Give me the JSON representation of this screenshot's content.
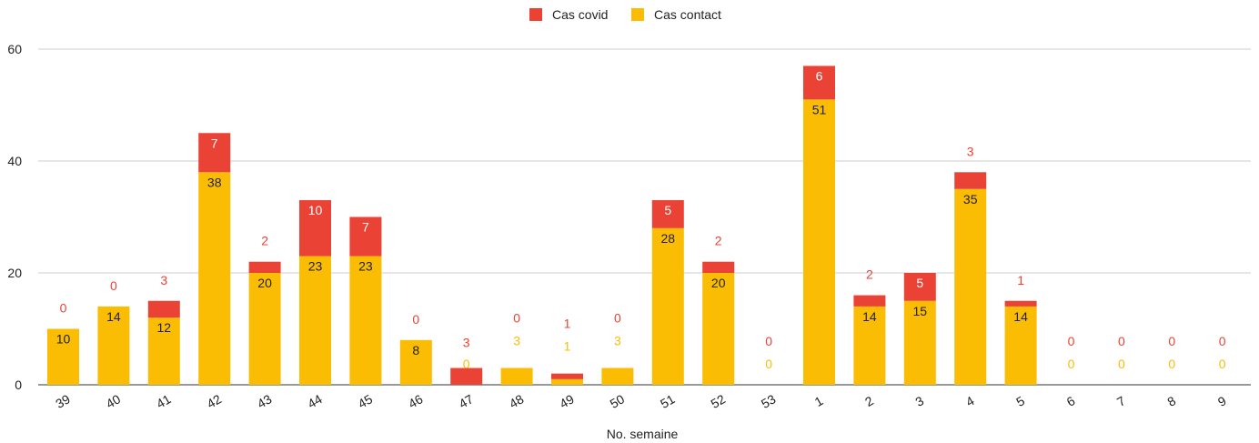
{
  "chart_data": {
    "type": "bar",
    "stacked": true,
    "title": "",
    "xlabel": "No. semaine",
    "ylabel": "",
    "ylim": [
      0,
      60
    ],
    "yticks": [
      0,
      20,
      40,
      60
    ],
    "grid": true,
    "legend_position": "top-center",
    "categories": [
      "39",
      "40",
      "41",
      "42",
      "43",
      "44",
      "45",
      "46",
      "47",
      "48",
      "49",
      "50",
      "51",
      "52",
      "53",
      "1",
      "2",
      "3",
      "4",
      "5",
      "6",
      "7",
      "8",
      "9"
    ],
    "series": [
      {
        "name": "Cas covid",
        "color": "#ea4335",
        "values": [
          0,
          0,
          3,
          7,
          2,
          10,
          7,
          0,
          3,
          0,
          1,
          0,
          5,
          2,
          0,
          6,
          2,
          5,
          3,
          1,
          0,
          0,
          0,
          0
        ]
      },
      {
        "name": "Cas contact",
        "color": "#fbbc04",
        "values": [
          10,
          14,
          12,
          38,
          20,
          23,
          23,
          8,
          0,
          3,
          1,
          3,
          28,
          20,
          0,
          51,
          14,
          15,
          35,
          14,
          0,
          0,
          0,
          0
        ]
      }
    ]
  }
}
